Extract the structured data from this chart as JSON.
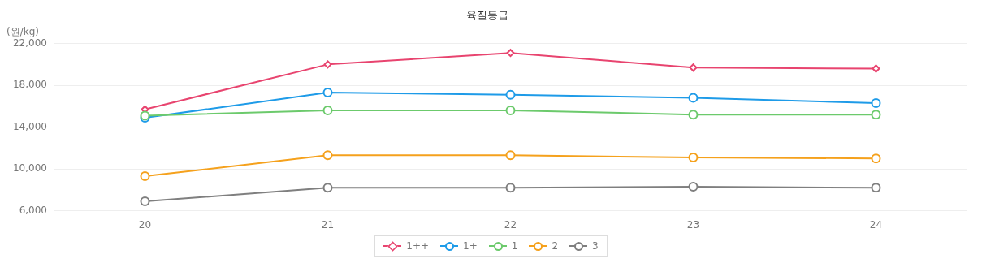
{
  "chart_data": {
    "type": "line",
    "title": "육질등급",
    "ylabel": "(원/kg)",
    "categories": [
      "20",
      "21",
      "22",
      "23",
      "24"
    ],
    "series": [
      {
        "name": "1++",
        "color": "#e8446f",
        "marker": "diamond",
        "values": [
          15700,
          20000,
          21100,
          19700,
          19600
        ]
      },
      {
        "name": "1+",
        "color": "#1e9be8",
        "marker": "circle",
        "values": [
          14900,
          17300,
          17100,
          16800,
          16300
        ]
      },
      {
        "name": "1",
        "color": "#6cca6c",
        "marker": "circle",
        "values": [
          15100,
          15600,
          15600,
          15200,
          15200
        ]
      },
      {
        "name": "2",
        "color": "#f5a11c",
        "marker": "circle",
        "values": [
          9300,
          11300,
          11300,
          11100,
          11000
        ]
      },
      {
        "name": "3",
        "color": "#7f7f7f",
        "marker": "circle",
        "values": [
          6900,
          8200,
          8200,
          8300,
          8200
        ]
      }
    ],
    "ylim": [
      6000,
      22000
    ],
    "yticks": [
      {
        "value": 6000,
        "label": "6,000"
      },
      {
        "value": 10000,
        "label": "10,000"
      },
      {
        "value": 14000,
        "label": "14,000"
      },
      {
        "value": 18000,
        "label": "18,000"
      },
      {
        "value": 22000,
        "label": "22,000"
      }
    ],
    "grid": "y",
    "legend": "bottom"
  }
}
